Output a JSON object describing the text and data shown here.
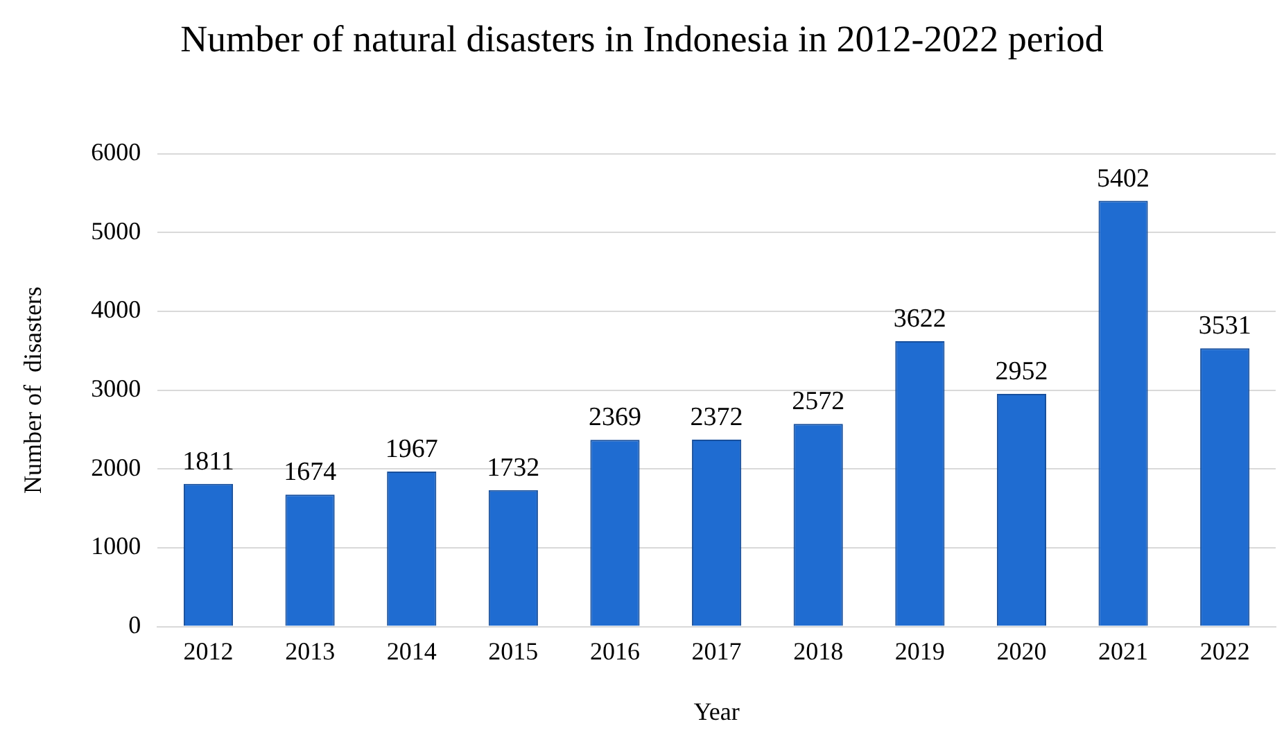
{
  "chart_data": {
    "type": "bar",
    "title": "Number of natural disasters in Indonesia in 2012-2022 period",
    "xlabel": "Year",
    "ylabel": "Number of  disasters",
    "categories": [
      "2012",
      "2013",
      "2014",
      "2015",
      "2016",
      "2017",
      "2018",
      "2019",
      "2020",
      "2021",
      "2022"
    ],
    "values": [
      1811,
      1674,
      1967,
      1732,
      2369,
      2372,
      2572,
      3622,
      2952,
      5402,
      3531
    ],
    "color": "#1f6cd1",
    "ylim": [
      0,
      6000
    ],
    "yticks": [
      0,
      1000,
      2000,
      3000,
      4000,
      5000,
      6000
    ],
    "grid": "y",
    "data_labels": true
  }
}
